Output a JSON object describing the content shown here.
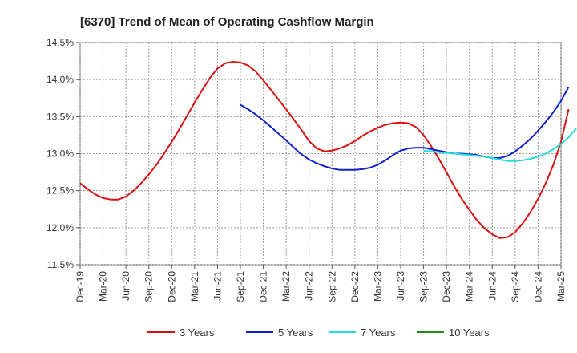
{
  "chart_data": {
    "type": "line",
    "title": "[6370]  Trend of Mean of Operating Cashflow Margin",
    "xlabel": "",
    "ylabel": "",
    "ylim": [
      11.5,
      14.5
    ],
    "yticks": [
      11.5,
      12.0,
      12.5,
      13.0,
      13.5,
      14.0,
      14.5
    ],
    "ytick_labels": [
      "11.5%",
      "12.0%",
      "12.5%",
      "13.0%",
      "13.5%",
      "14.0%",
      "14.5%"
    ],
    "x_ticks": [
      "Dec-19",
      "Mar-20",
      "Jun-20",
      "Sep-20",
      "Dec-20",
      "Mar-21",
      "Jun-21",
      "Sep-21",
      "Dec-21",
      "Mar-22",
      "Jun-22",
      "Sep-22",
      "Dec-22",
      "Mar-23",
      "Jun-23",
      "Sep-23",
      "Dec-23",
      "Mar-24",
      "Jun-24",
      "Sep-24",
      "Dec-24",
      "Mar-25"
    ],
    "grid": true,
    "legend_position": "bottom",
    "series": [
      {
        "name": "3 Years",
        "color": "#dd1111",
        "start_index": 0,
        "values": [
          12.6,
          12.52,
          12.45,
          12.4,
          12.38,
          12.38,
          12.42,
          12.5,
          12.6,
          12.72,
          12.85,
          13.0,
          13.16,
          13.33,
          13.51,
          13.69,
          13.86,
          14.02,
          14.15,
          14.22,
          14.24,
          14.23,
          14.19,
          14.11,
          13.99,
          13.86,
          13.73,
          13.6,
          13.46,
          13.32,
          13.17,
          13.07,
          13.03,
          13.04,
          13.07,
          13.11,
          13.17,
          13.24,
          13.3,
          13.35,
          13.39,
          13.41,
          13.42,
          13.41,
          13.36,
          13.25,
          13.1,
          12.93,
          12.75,
          12.56,
          12.39,
          12.24,
          12.1,
          11.99,
          11.91,
          11.86,
          11.87,
          11.94,
          12.06,
          12.21,
          12.39,
          12.6,
          12.85,
          13.16,
          13.6
        ]
      },
      {
        "name": "5 Years",
        "color": "#1122cc",
        "start_index": 21,
        "values": [
          13.66,
          13.6,
          13.53,
          13.45,
          13.36,
          13.27,
          13.18,
          13.08,
          12.99,
          12.92,
          12.87,
          12.83,
          12.8,
          12.78,
          12.78,
          12.78,
          12.79,
          12.81,
          12.85,
          12.91,
          12.98,
          13.04,
          13.07,
          13.08,
          13.08,
          13.06,
          13.04,
          13.02,
          13.0,
          13.0,
          12.99,
          12.98,
          12.96,
          12.94,
          12.94,
          12.97,
          13.03,
          13.11,
          13.2,
          13.31,
          13.43,
          13.56,
          13.71,
          13.9
        ]
      },
      {
        "name": "7 Years",
        "color": "#22dddd",
        "start_index": 45,
        "values": [
          13.04,
          13.03,
          13.02,
          13.01,
          13.0,
          12.99,
          12.98,
          12.97,
          12.96,
          12.94,
          12.92,
          12.9,
          12.9,
          12.91,
          12.93,
          12.96,
          13.0,
          13.06,
          13.13,
          13.22,
          13.34
        ]
      },
      {
        "name": "10 Years",
        "color": "#228822",
        "start_index": 0,
        "values": []
      }
    ]
  }
}
